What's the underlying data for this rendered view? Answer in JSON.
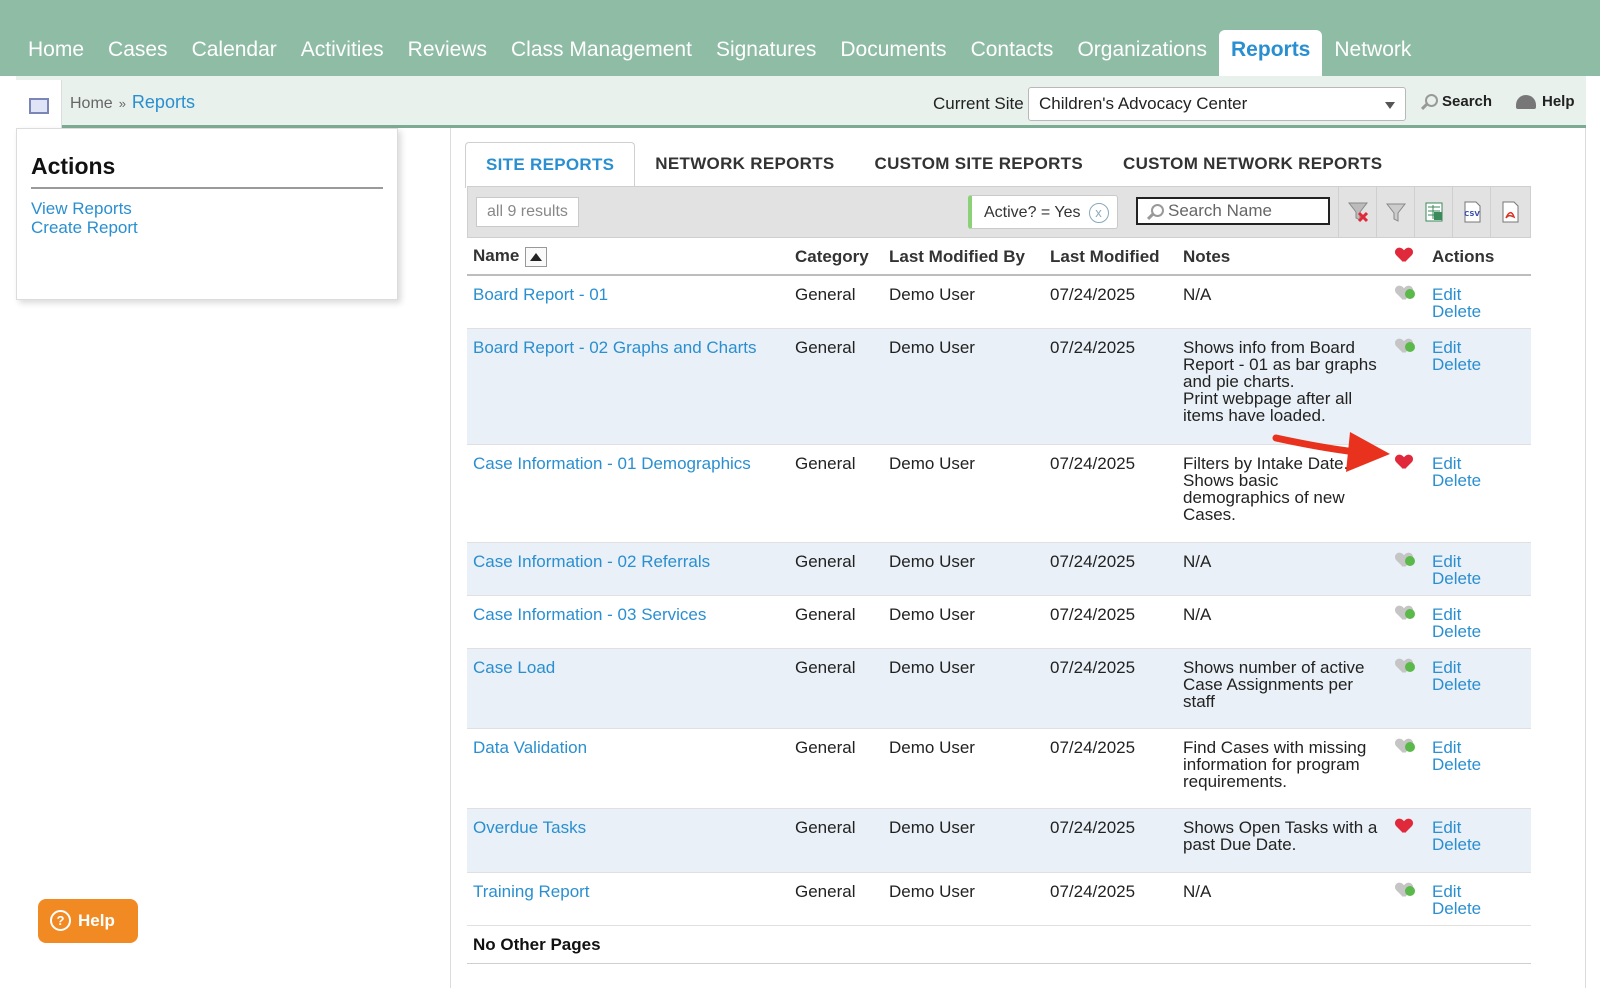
{
  "nav": {
    "items": [
      "Home",
      "Cases",
      "Calendar",
      "Activities",
      "Reviews",
      "Class Management",
      "Signatures",
      "Documents",
      "Contacts",
      "Organizations",
      "Reports",
      "Network"
    ],
    "active": "Reports"
  },
  "breadcrumb": {
    "home": "Home",
    "separator": "»",
    "current": "Reports"
  },
  "site": {
    "label": "Current Site",
    "value": "Children's Advocacy Center"
  },
  "util": {
    "search": "Search",
    "help": "Help"
  },
  "actions": {
    "title": "Actions",
    "view_reports": "View Reports",
    "create_report": "Create Report"
  },
  "tabs": [
    "SITE REPORTS",
    "NETWORK REPORTS",
    "CUSTOM SITE REPORTS",
    "CUSTOM NETWORK REPORTS"
  ],
  "toolbar": {
    "results": "all 9 results",
    "filter": "Active? = Yes",
    "filter_clear": "x",
    "search_placeholder": "Search Name",
    "csv_label": "CSV"
  },
  "table": {
    "headers": {
      "name": "Name",
      "category": "Category",
      "modified_by": "Last Modified By",
      "modified": "Last Modified",
      "notes": "Notes",
      "actions": "Actions"
    },
    "rows": [
      {
        "name": "Board Report - 01",
        "category": "General",
        "by": "Demo User",
        "date": "07/24/2025",
        "notes": [
          "N/A"
        ],
        "favorite": false
      },
      {
        "name": "Board Report - 02 Graphs and Charts",
        "category": "General",
        "by": "Demo User",
        "date": "07/24/2025",
        "notes": [
          "Shows info from Board",
          "Report - 01 as bar graphs",
          "and pie charts.",
          "Print webpage after all",
          "items have loaded."
        ],
        "favorite": false
      },
      {
        "name": "Case Information - 01 Demographics",
        "category": "General",
        "by": "Demo User",
        "date": "07/24/2025",
        "notes": [
          "Filters by Intake Date.",
          "Shows basic",
          "demographics of new",
          "Cases."
        ],
        "favorite": true
      },
      {
        "name": "Case Information - 02 Referrals",
        "category": "General",
        "by": "Demo User",
        "date": "07/24/2025",
        "notes": [
          "N/A"
        ],
        "favorite": false
      },
      {
        "name": "Case Information - 03 Services",
        "category": "General",
        "by": "Demo User",
        "date": "07/24/2025",
        "notes": [
          "N/A"
        ],
        "favorite": false
      },
      {
        "name": "Case Load",
        "category": "General",
        "by": "Demo User",
        "date": "07/24/2025",
        "notes": [
          "Shows number of active",
          "Case Assignments per",
          "staff"
        ],
        "favorite": false
      },
      {
        "name": "Data Validation",
        "category": "General",
        "by": "Demo User",
        "date": "07/24/2025",
        "notes": [
          "Find Cases with missing",
          "information for program",
          "requirements."
        ],
        "favorite": false
      },
      {
        "name": "Overdue Tasks",
        "category": "General",
        "by": "Demo User",
        "date": "07/24/2025",
        "notes": [
          "Shows Open Tasks with a",
          "past Due Date."
        ],
        "favorite": true
      },
      {
        "name": "Training Report",
        "category": "General",
        "by": "Demo User",
        "date": "07/24/2025",
        "notes": [
          "N/A"
        ],
        "favorite": false
      }
    ],
    "edit_label": "Edit",
    "delete_label": "Delete",
    "footer": "No Other Pages"
  },
  "help_button": "Help",
  "colors": {
    "nav_bg": "#8fbca5",
    "link": "#2a8fd0",
    "alt_row": "#e9f0f7",
    "help": "#f28a24",
    "annotation_arrow": "#e8321e"
  }
}
